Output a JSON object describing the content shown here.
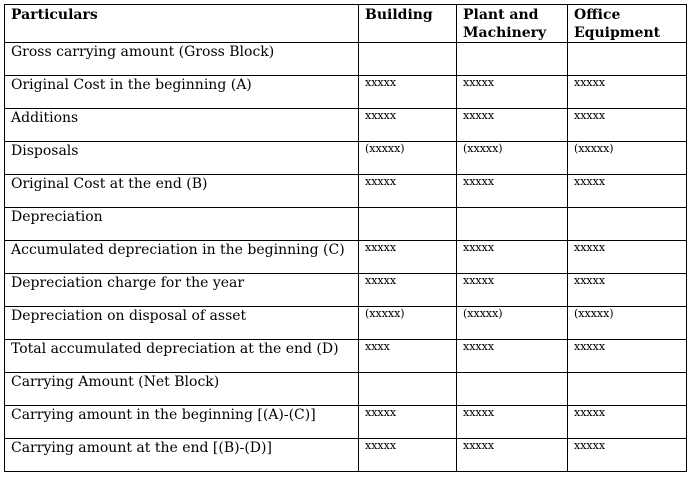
{
  "table": {
    "headers": [
      "Particulars",
      "Building",
      "Plant and Machinery",
      "Office Equipment"
    ],
    "rows": [
      {
        "label": "Gross carrying amount (Gross Block)",
        "values": [
          "",
          "",
          ""
        ]
      },
      {
        "label": "Original Cost in the beginning (A)",
        "values": [
          "xxxxx",
          "xxxxx",
          "xxxxx"
        ]
      },
      {
        "label": "Additions",
        "values": [
          "xxxxx",
          "xxxxx",
          "xxxxx"
        ]
      },
      {
        "label": "Disposals",
        "values": [
          "(xxxxx)",
          "(xxxxx)",
          "(xxxxx)"
        ]
      },
      {
        "label": "Original Cost at the end (B)",
        "values": [
          "xxxxx",
          "xxxxx",
          "xxxxx"
        ]
      },
      {
        "label": "Depreciation",
        "values": [
          "",
          "",
          ""
        ]
      },
      {
        "label": "Accumulated depreciation in the beginning (C)",
        "values": [
          "xxxxx",
          "xxxxx",
          "xxxxx"
        ]
      },
      {
        "label": "Depreciation charge for the year",
        "values": [
          "xxxxx",
          "xxxxx",
          "xxxxx"
        ]
      },
      {
        "label": "Depreciation on disposal of asset",
        "values": [
          "(xxxxx)",
          "(xxxxx)",
          "(xxxxx)"
        ]
      },
      {
        "label": "Total accumulated depreciation at the end (D)",
        "values": [
          "xxxx",
          "xxxxx",
          "xxxxx"
        ]
      },
      {
        "label": "Carrying Amount (Net Block)",
        "values": [
          "",
          "",
          ""
        ]
      },
      {
        "label": "Carrying amount in the beginning [(A)-(C)]",
        "values": [
          "xxxxx",
          "xxxxx",
          "xxxxx"
        ]
      },
      {
        "label": "Carrying amount at the end [(B)-(D)]",
        "values": [
          "xxxxx",
          "xxxxx",
          "xxxxx"
        ]
      }
    ]
  }
}
